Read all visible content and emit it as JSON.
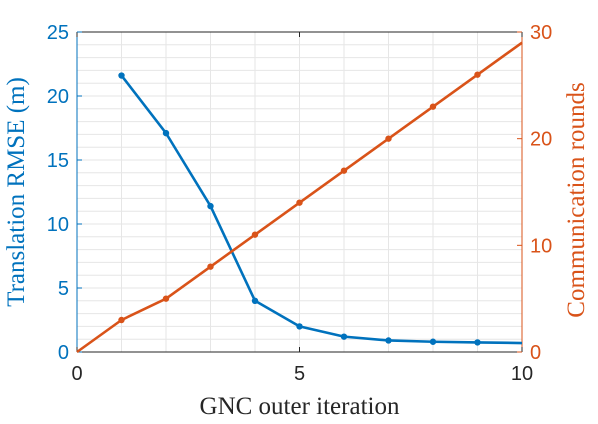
{
  "chart_data": {
    "type": "line",
    "title": "",
    "xlabel": "GNC outer iteration",
    "xlim": [
      0,
      10
    ],
    "xticks": [
      "0",
      "5",
      "10"
    ],
    "grid": true,
    "left_axis": {
      "label": "Translation RMSE (m)",
      "color": "#0072BD",
      "ylim": [
        0,
        25
      ],
      "ticks": [
        "0",
        "5",
        "10",
        "15",
        "20",
        "25"
      ]
    },
    "right_axis": {
      "label": "Communication rounds",
      "color": "#D95319",
      "ylim": [
        0,
        30
      ],
      "ticks": [
        "0",
        "10",
        "20",
        "30"
      ]
    },
    "series": [
      {
        "axis": "left",
        "color": "#0072BD",
        "x": [
          1,
          2,
          3,
          4,
          5,
          6,
          7,
          8,
          9,
          10
        ],
        "y": [
          21.6,
          17.1,
          11.4,
          4.0,
          2.0,
          1.2,
          0.9,
          0.8,
          0.75,
          0.7
        ],
        "markers": [
          true,
          true,
          true,
          true,
          true,
          true,
          true,
          true,
          true,
          false
        ]
      },
      {
        "axis": "right",
        "color": "#D95319",
        "x": [
          0,
          1,
          2,
          3,
          4,
          5,
          6,
          7,
          8,
          9,
          10
        ],
        "y": [
          0,
          3,
          5,
          8,
          11,
          14,
          17,
          20,
          23,
          26,
          29
        ],
        "markers": [
          false,
          true,
          true,
          true,
          true,
          true,
          true,
          true,
          true,
          true,
          false
        ]
      }
    ]
  }
}
